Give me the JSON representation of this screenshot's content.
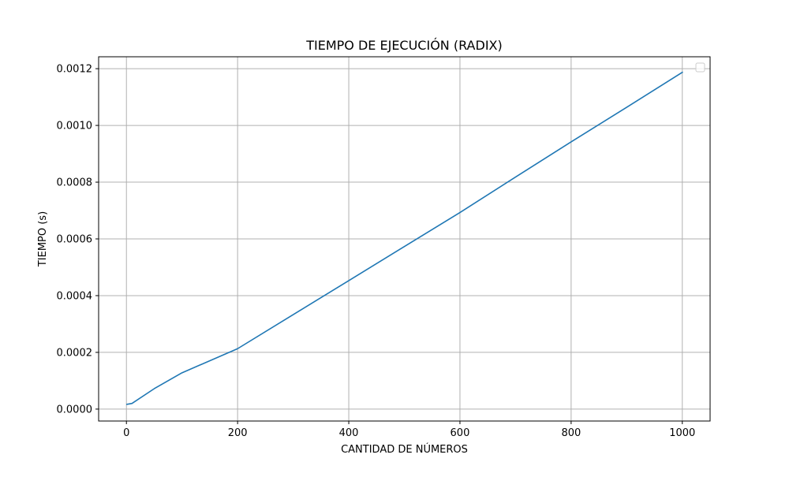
{
  "chart_data": {
    "type": "line",
    "title": "TIEMPO DE EJECUCIÓN (RADIX)",
    "xlabel": "CANTIDAD DE NÚMEROS",
    "ylabel": "TIEMPO (s)",
    "xlim": [
      -50,
      1050
    ],
    "ylim": [
      -4.2e-05,
      0.001242
    ],
    "x_ticks": [
      0,
      200,
      400,
      600,
      800,
      1000
    ],
    "x_tick_labels": [
      "0",
      "200",
      "400",
      "600",
      "800",
      "1000"
    ],
    "y_ticks": [
      0,
      0.0002,
      0.0004,
      0.0006,
      0.0008,
      0.001,
      0.0012
    ],
    "y_tick_labels": [
      "0.0000",
      "0.0002",
      "0.0004",
      "0.0006",
      "0.0008",
      "0.0010",
      "0.0012"
    ],
    "grid": true,
    "legend_position": "upper right",
    "legend_entries": [],
    "series": [
      {
        "color": "#1f77b4",
        "x": [
          1,
          10,
          50,
          100,
          200,
          300,
          400,
          500,
          600,
          700,
          800,
          900,
          1000
        ],
        "y": [
          1.7e-05,
          2e-05,
          7.2e-05,
          0.000128,
          0.000213,
          0.000333,
          0.000453,
          0.000573,
          0.000693,
          0.000818,
          0.000942,
          0.001064,
          0.001187
        ]
      }
    ]
  }
}
